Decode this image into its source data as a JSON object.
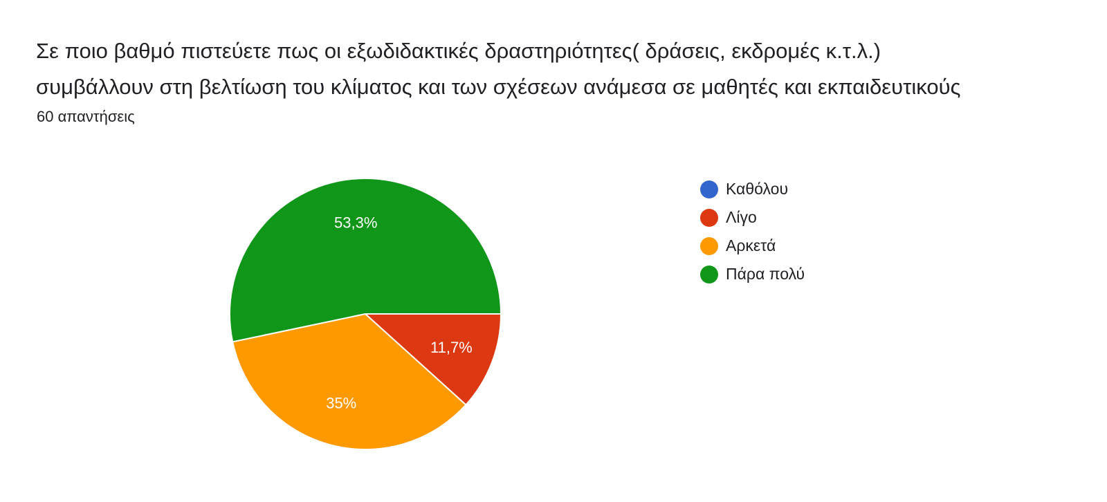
{
  "question": {
    "line1": "Σε ποιο βαθμό πιστεύετε πως οι εξωδιδακτικές δραστηριότητες(  δράσεις, εκδρομές κ.τ.λ.)",
    "line2": "συμβάλλουν στη βελτίωση του κλίματος και των σχέσεων ανάμεσα σε μαθητές και εκπαιδευτικούς",
    "responses": "60 απαντήσεις"
  },
  "chart_data": {
    "type": "pie",
    "title": "",
    "slices": [
      {
        "label": "Καθόλου",
        "value": 0,
        "display": "",
        "color": "#3366cc"
      },
      {
        "label": "Λίγο",
        "value": 11.7,
        "display": "11,7%",
        "color": "#dc3912"
      },
      {
        "label": "Αρκετά",
        "value": 35,
        "display": "35%",
        "color": "#ff9900"
      },
      {
        "label": "Πάρα πολύ",
        "value": 53.3,
        "display": "53,3%",
        "color": "#109618"
      }
    ],
    "legend_position": "right",
    "start_direction": "right, clockwise"
  }
}
